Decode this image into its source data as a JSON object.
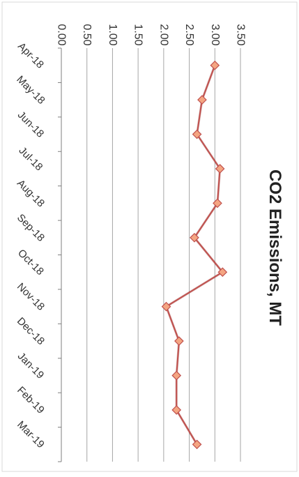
{
  "chart_data": {
    "type": "line",
    "title": "CO2 Emissions, MT",
    "xlabel": "",
    "ylabel": "",
    "categories": [
      "Apr-18",
      "May-18",
      "Jun-18",
      "Jul-18",
      "Aug-18",
      "Sep-18",
      "Oct-18",
      "Nov-18",
      "Dec-18",
      "Jan-19",
      "Feb-19",
      "Mar-19"
    ],
    "series": [
      {
        "values": [
          3.0,
          2.75,
          2.65,
          3.1,
          3.05,
          2.6,
          3.15,
          2.05,
          2.3,
          2.25,
          2.25,
          2.65
        ]
      }
    ],
    "ylim": [
      0,
      3.5
    ],
    "yticks": [
      "0.00",
      "0.50",
      "1.00",
      "1.50",
      "2.00",
      "2.50",
      "3.00",
      "3.50"
    ],
    "grid": true,
    "orientation": "rotated-90-clockwise",
    "colors": {
      "line": "#c0504d",
      "marker_fill": "#f4a582",
      "marker_stroke": "#c0504d",
      "grid": "#a6a6a6"
    }
  }
}
